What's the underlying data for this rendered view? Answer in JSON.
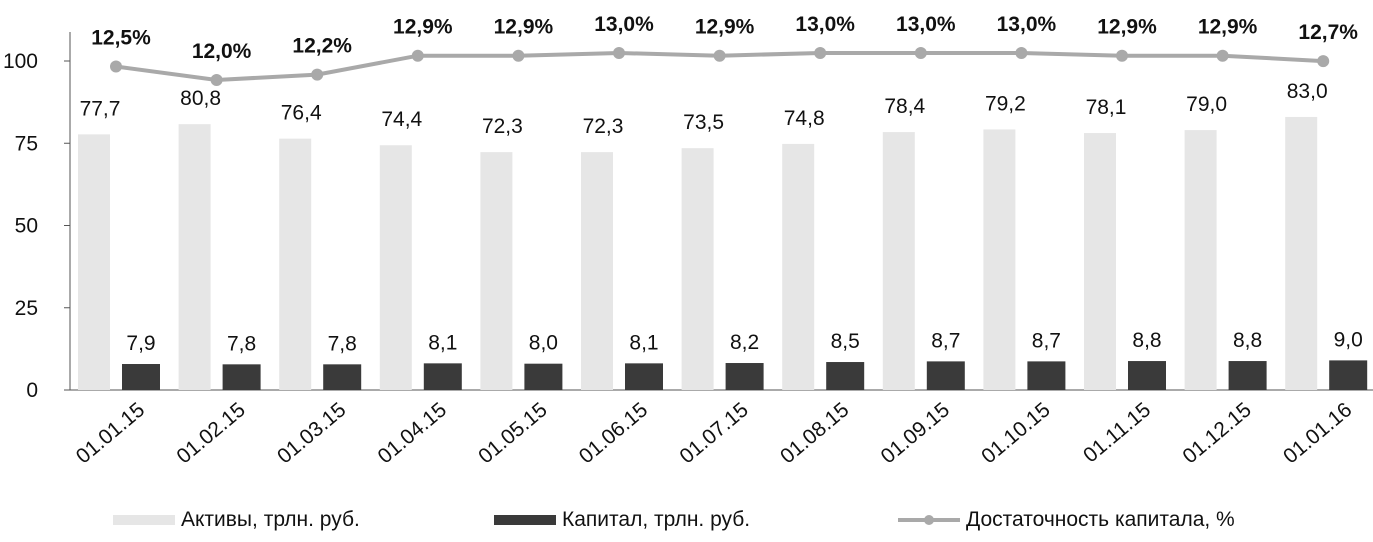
{
  "chart_data": {
    "type": "bar",
    "categories": [
      "01.01.15",
      "01.02.15",
      "01.03.15",
      "01.04.15",
      "01.05.15",
      "01.06.15",
      "01.07.15",
      "01.08.15",
      "01.09.15",
      "01.10.15",
      "01.11.15",
      "01.12.15",
      "01.01.16"
    ],
    "series": [
      {
        "name": "Активы, трлн. руб.",
        "kind": "bar",
        "color": "#e6e6e6",
        "values": [
          77.7,
          80.8,
          76.4,
          74.4,
          72.3,
          72.3,
          73.5,
          74.8,
          78.4,
          79.2,
          78.1,
          79.0,
          83.0
        ],
        "labels": [
          "77,7",
          "80,8",
          "76,4",
          "74,4",
          "72,3",
          "72,3",
          "73,5",
          "74,8",
          "78,4",
          "79,2",
          "78,1",
          "79,0",
          "83,0"
        ]
      },
      {
        "name": "Капитал, трлн. руб.",
        "kind": "bar",
        "color": "#3a3a3a",
        "values": [
          7.9,
          7.8,
          7.8,
          8.1,
          8.0,
          8.1,
          8.2,
          8.5,
          8.7,
          8.7,
          8.8,
          8.8,
          9.0
        ],
        "labels": [
          "7,9",
          "7,8",
          "7,8",
          "8,1",
          "8,0",
          "8,1",
          "8,2",
          "8,5",
          "8,7",
          "8,7",
          "8,8",
          "8,8",
          "9,0"
        ]
      },
      {
        "name": "Достаточность капитала, %",
        "kind": "line",
        "color": "#a9a9a9",
        "values": [
          12.5,
          12.0,
          12.2,
          12.9,
          12.9,
          13.0,
          12.9,
          13.0,
          13.0,
          13.0,
          12.9,
          12.9,
          12.7
        ],
        "labels": [
          "12,5%",
          "12,0%",
          "12,2%",
          "12,9%",
          "12,9%",
          "13,0%",
          "12,9%",
          "13,0%",
          "13,0%",
          "13,0%",
          "12,9%",
          "12,9%",
          "12,7%"
        ]
      }
    ],
    "yticks": [
      "0",
      "25",
      "50",
      "75",
      "100"
    ],
    "ylim": [
      0,
      100
    ],
    "grid": false,
    "legend_position": "bottom"
  }
}
